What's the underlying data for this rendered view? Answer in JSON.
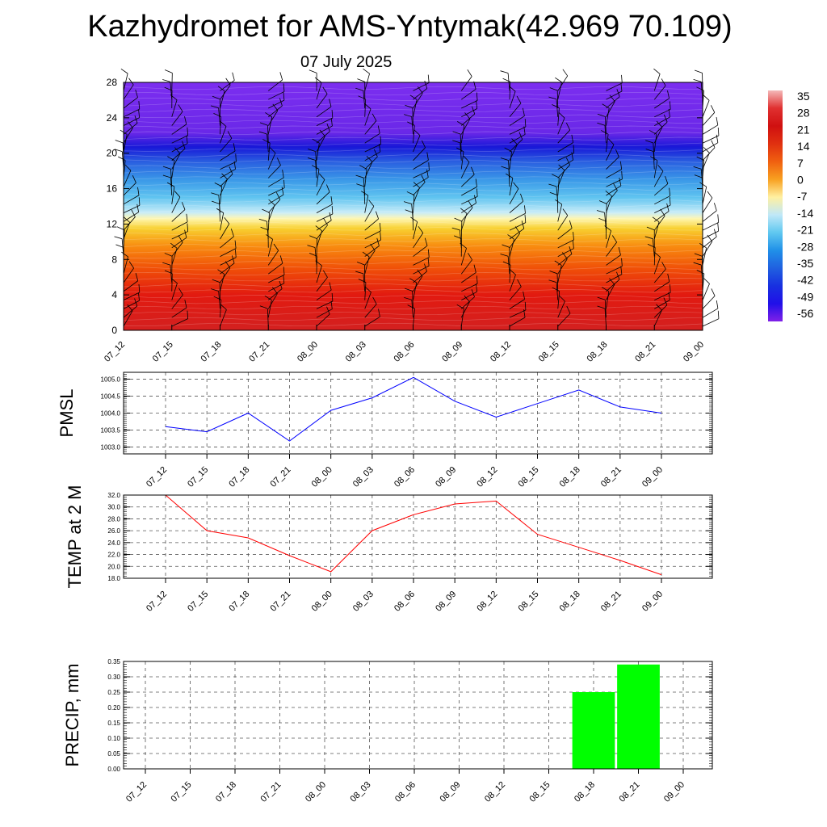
{
  "title": "Kazhydromet for AMS-Yntymak(42.969 70.109)",
  "subtitle": "07 July 2025",
  "time_labels": [
    "07_12",
    "07_15",
    "07_18",
    "07_21",
    "08_00",
    "08_03",
    "08_06",
    "08_09",
    "08_12",
    "08_15",
    "08_18",
    "08_21",
    "09_00"
  ],
  "chart_data": [
    {
      "type": "heatmap",
      "description_axis": "height",
      "y_ticks": [
        0,
        4,
        8,
        12,
        16,
        20,
        24,
        28
      ],
      "ylim": [
        0,
        28
      ],
      "colorbar_labels": [
        "35",
        "28",
        "21",
        "14",
        "7",
        "0",
        "-7",
        "-14",
        "-21",
        "-28",
        "-35",
        "-42",
        "-49",
        "-56"
      ],
      "colorbar_colors": [
        "#f4b8b8",
        "#e03030",
        "#d01010",
        "#e03010",
        "#f06010",
        "#f8a020",
        "#fff0a0",
        "#c0e8f8",
        "#60c8f0",
        "#2090e8",
        "#2060e0",
        "#1830e0",
        "#2010e8",
        "#8020e8"
      ],
      "layers": [
        {
          "height": 0,
          "color": "#d32020"
        },
        {
          "height": 4,
          "color": "#e21a10"
        },
        {
          "height": 7,
          "color": "#f05008"
        },
        {
          "height": 9.5,
          "color": "#f88c10"
        },
        {
          "height": 11.5,
          "color": "#f8d030"
        },
        {
          "height": 12.6,
          "color": "#fff6b0"
        },
        {
          "height": 13.3,
          "color": "#c8ecf8"
        },
        {
          "height": 15,
          "color": "#60c4f0"
        },
        {
          "height": 17,
          "color": "#3a98e8"
        },
        {
          "height": 19,
          "color": "#2a60e0"
        },
        {
          "height": 20.7,
          "color": "#1818d8"
        },
        {
          "height": 22.3,
          "color": "#6a28e8"
        },
        {
          "height": 28,
          "color": "#7c2ef0"
        }
      ]
    },
    {
      "type": "line",
      "ylabel": "PMSL",
      "ylim": [
        1002.8,
        1005.2
      ],
      "y_ticks": [
        "1003.0",
        "1003.5",
        "1004.0",
        "1004.5",
        "1005.0"
      ],
      "color": "#0000ff",
      "values": [
        1003.6,
        1003.45,
        1004.0,
        1003.18,
        1004.08,
        1004.45,
        1005.05,
        1004.35,
        1003.88,
        1004.28,
        1004.68,
        1004.18,
        1004.0
      ]
    },
    {
      "type": "line",
      "ylabel": "TEMP at 2 M",
      "ylim": [
        18.0,
        32.0
      ],
      "y_ticks": [
        "18.0",
        "20.0",
        "22.0",
        "24.0",
        "26.0",
        "28.0",
        "30.0",
        "32.0"
      ],
      "color": "#ff0000",
      "values": [
        32.0,
        26.0,
        24.8,
        21.8,
        19.1,
        26.0,
        28.7,
        30.5,
        31.0,
        25.4,
        23.2,
        21.0,
        18.6
      ]
    },
    {
      "type": "bar",
      "ylabel": "PRECIP, mm",
      "ylim": [
        0.0,
        0.35
      ],
      "y_ticks": [
        "0.00",
        "0.05",
        "0.10",
        "0.15",
        "0.20",
        "0.25",
        "0.30",
        "0.35"
      ],
      "color": "#00ff00",
      "values": [
        0,
        0,
        0,
        0,
        0,
        0,
        0,
        0,
        0,
        0,
        0.25,
        0.34,
        0
      ]
    }
  ]
}
